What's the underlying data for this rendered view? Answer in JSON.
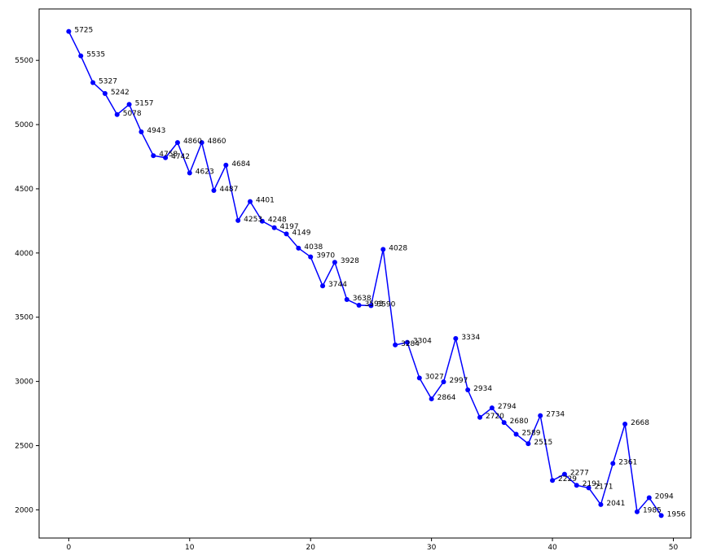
{
  "chart_data": {
    "type": "line",
    "title": "",
    "xlabel": "",
    "ylabel": "",
    "xlim": [
      -2.45,
      51.45
    ],
    "ylim": [
      1780.55,
      5900.45
    ],
    "xticks": [
      0,
      10,
      20,
      30,
      40,
      50
    ],
    "yticks": [
      2000,
      2500,
      3000,
      3500,
      4000,
      4500,
      5000,
      5500
    ],
    "grid": false,
    "legend": "none",
    "series": [
      {
        "color": "#0000ff",
        "marker": "circle",
        "x": [
          0,
          1,
          2,
          3,
          4,
          5,
          6,
          7,
          8,
          9,
          10,
          11,
          12,
          13,
          14,
          15,
          16,
          17,
          18,
          19,
          20,
          21,
          22,
          23,
          24,
          25,
          26,
          27,
          28,
          29,
          30,
          31,
          32,
          33,
          34,
          35,
          36,
          37,
          38,
          39,
          40,
          41,
          42,
          43,
          44,
          45,
          46,
          47,
          48,
          49
        ],
        "values": [
          5725,
          5535,
          5327,
          5242,
          5078,
          5157,
          4943,
          4758,
          4742,
          4860,
          4623,
          4860,
          4487,
          4684,
          4253,
          4401,
          4248,
          4197,
          4149,
          4038,
          3970,
          3744,
          3928,
          3638,
          3593,
          3590,
          4028,
          3284,
          3304,
          3027,
          2864,
          2997,
          3334,
          2934,
          2720,
          2794,
          2680,
          2589,
          2515,
          2734,
          2229,
          2277,
          2191,
          2171,
          2041,
          2361,
          2668,
          1985,
          2094,
          1956
        ]
      }
    ]
  }
}
